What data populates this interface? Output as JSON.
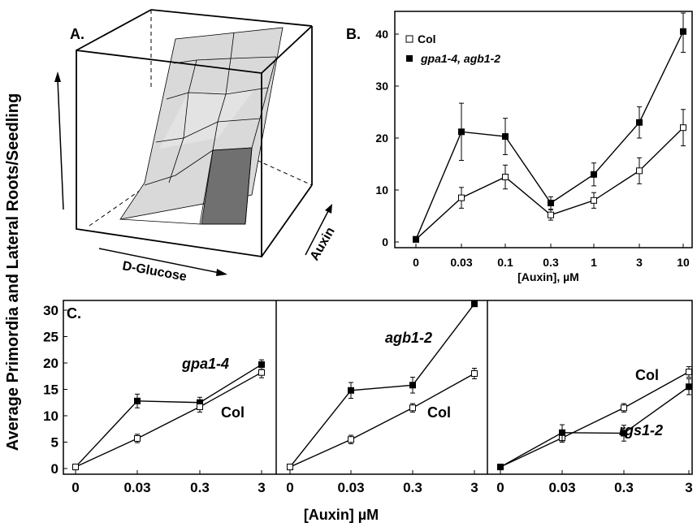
{
  "figure": {
    "y_label": "Average Primordia and Lateral Roots/Seedling",
    "x_label_bottom": "[Auxin] µM"
  },
  "panel_a": {
    "label": "A.",
    "x_axis_label": "D-Glucose",
    "depth_axis_label": "Auxin",
    "surface_colors": {
      "light": "#d9d9d9",
      "dark": "#707070"
    }
  },
  "chart_data": [
    {
      "id": "B",
      "panel_label": "B.",
      "type": "line",
      "categories": [
        "0",
        "0.03",
        "0.1",
        "0.3",
        "1",
        "3",
        "10"
      ],
      "xlabel": "[Auxin], µM",
      "ylabel": "",
      "ylim": [
        0,
        45
      ],
      "yticks": [
        0,
        10,
        20,
        30,
        40
      ],
      "legend_position": "top-left",
      "series": [
        {
          "name": "Col",
          "marker": "open-square",
          "values": [
            0.5,
            8.5,
            12.5,
            5.2,
            8.0,
            13.7,
            22.0
          ],
          "errors": [
            0,
            2.0,
            2.3,
            1.0,
            1.5,
            2.5,
            3.5
          ]
        },
        {
          "name": "gpa1-4, agb1-2",
          "marker": "filled-square",
          "values": [
            0.5,
            21.2,
            20.3,
            7.5,
            13.0,
            23.0,
            40.5
          ],
          "errors": [
            0,
            5.5,
            3.5,
            1.2,
            2.2,
            3.0,
            4.0
          ]
        }
      ]
    },
    {
      "id": "C1",
      "panel_label": "C.",
      "type": "line",
      "categories": [
        "0",
        "0.03",
        "0.3",
        "3"
      ],
      "ylim": [
        0,
        31
      ],
      "yticks": [
        0,
        5,
        10,
        15,
        20,
        25,
        30
      ],
      "series": [
        {
          "name": "gpa1-4",
          "marker": "filled-square",
          "values": [
            0.3,
            12.8,
            12.5,
            19.7
          ],
          "errors": [
            0,
            1.3,
            1.0,
            0.9
          ]
        },
        {
          "name": "Col",
          "marker": "open-square",
          "values": [
            0.3,
            5.7,
            11.7,
            18.2
          ],
          "errors": [
            0,
            0.8,
            1.0,
            1.0
          ]
        }
      ]
    },
    {
      "id": "C2",
      "type": "line",
      "categories": [
        "0",
        "0.03",
        "0.3",
        "3"
      ],
      "ylim": [
        0,
        31
      ],
      "series": [
        {
          "name": "agb1-2",
          "marker": "filled-square",
          "values": [
            0.3,
            14.8,
            15.8,
            31.2
          ],
          "errors": [
            0,
            1.5,
            1.5,
            0
          ]
        },
        {
          "name": "Col",
          "marker": "open-square",
          "values": [
            0.3,
            5.5,
            11.5,
            18.0
          ],
          "errors": [
            0,
            0.8,
            0.8,
            1.0
          ]
        }
      ]
    },
    {
      "id": "C3",
      "type": "line",
      "categories": [
        "0",
        "0.03",
        "0.3",
        "3"
      ],
      "ylim": [
        0,
        31
      ],
      "series": [
        {
          "name": "Col",
          "marker": "open-square",
          "values": [
            0.3,
            5.8,
            11.5,
            18.3
          ],
          "errors": [
            0,
            0.8,
            0.8,
            1.0
          ]
        },
        {
          "name": "rgs1-2",
          "marker": "filled-square",
          "values": [
            0.3,
            6.8,
            6.7,
            15.5
          ],
          "errors": [
            0,
            1.5,
            1.5,
            1.5
          ]
        }
      ]
    }
  ]
}
